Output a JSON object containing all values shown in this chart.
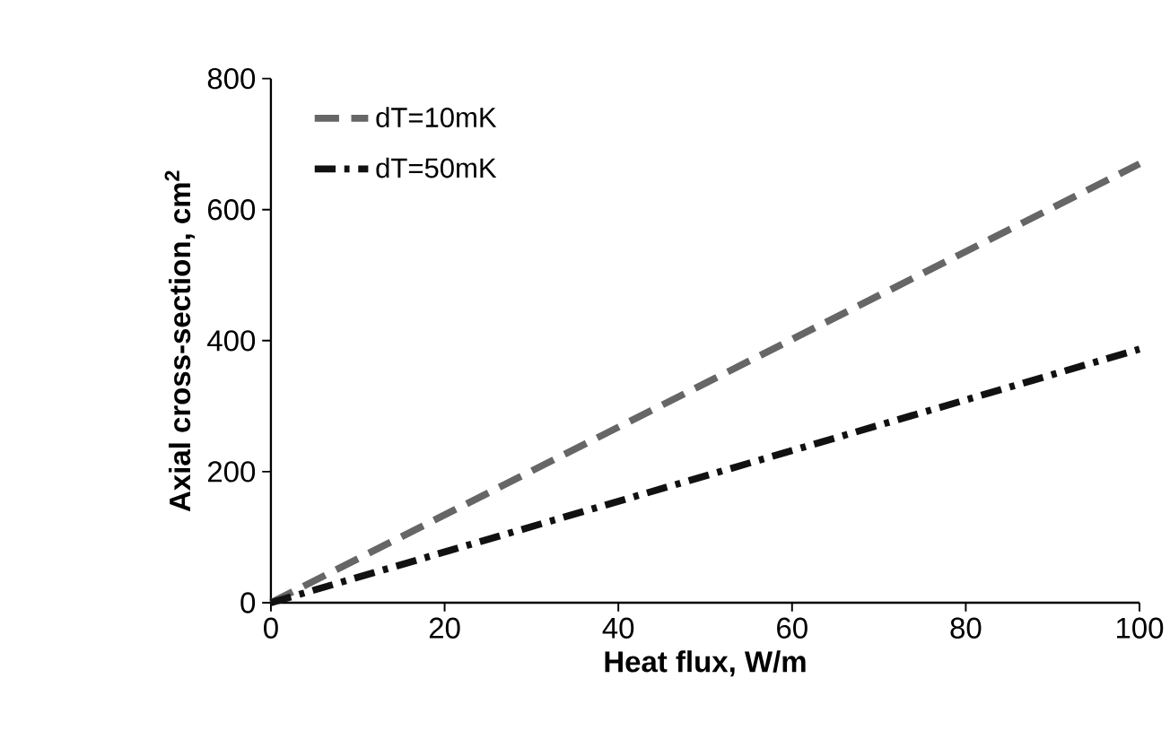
{
  "chart_data": {
    "type": "line",
    "xlabel": "Heat flux, W/m",
    "ylabel": "Axial cross-section, cm$^{2}$",
    "xlim": [
      0,
      100
    ],
    "ylim": [
      0,
      800
    ],
    "xticks": [
      0,
      20,
      40,
      60,
      80,
      100
    ],
    "yticks": [
      0,
      200,
      400,
      600,
      800
    ],
    "grid": false,
    "legend": "top left",
    "marker": "none",
    "x": [
      0,
      100
    ],
    "series": [
      {
        "name": "dT=10mK",
        "color": "#666666",
        "line_style": "dashed",
        "values": [
          0,
          670
        ]
      },
      {
        "name": "dT=50mK",
        "color": "#111111",
        "line_style": "dashdot",
        "values": [
          0,
          387
        ]
      }
    ]
  }
}
